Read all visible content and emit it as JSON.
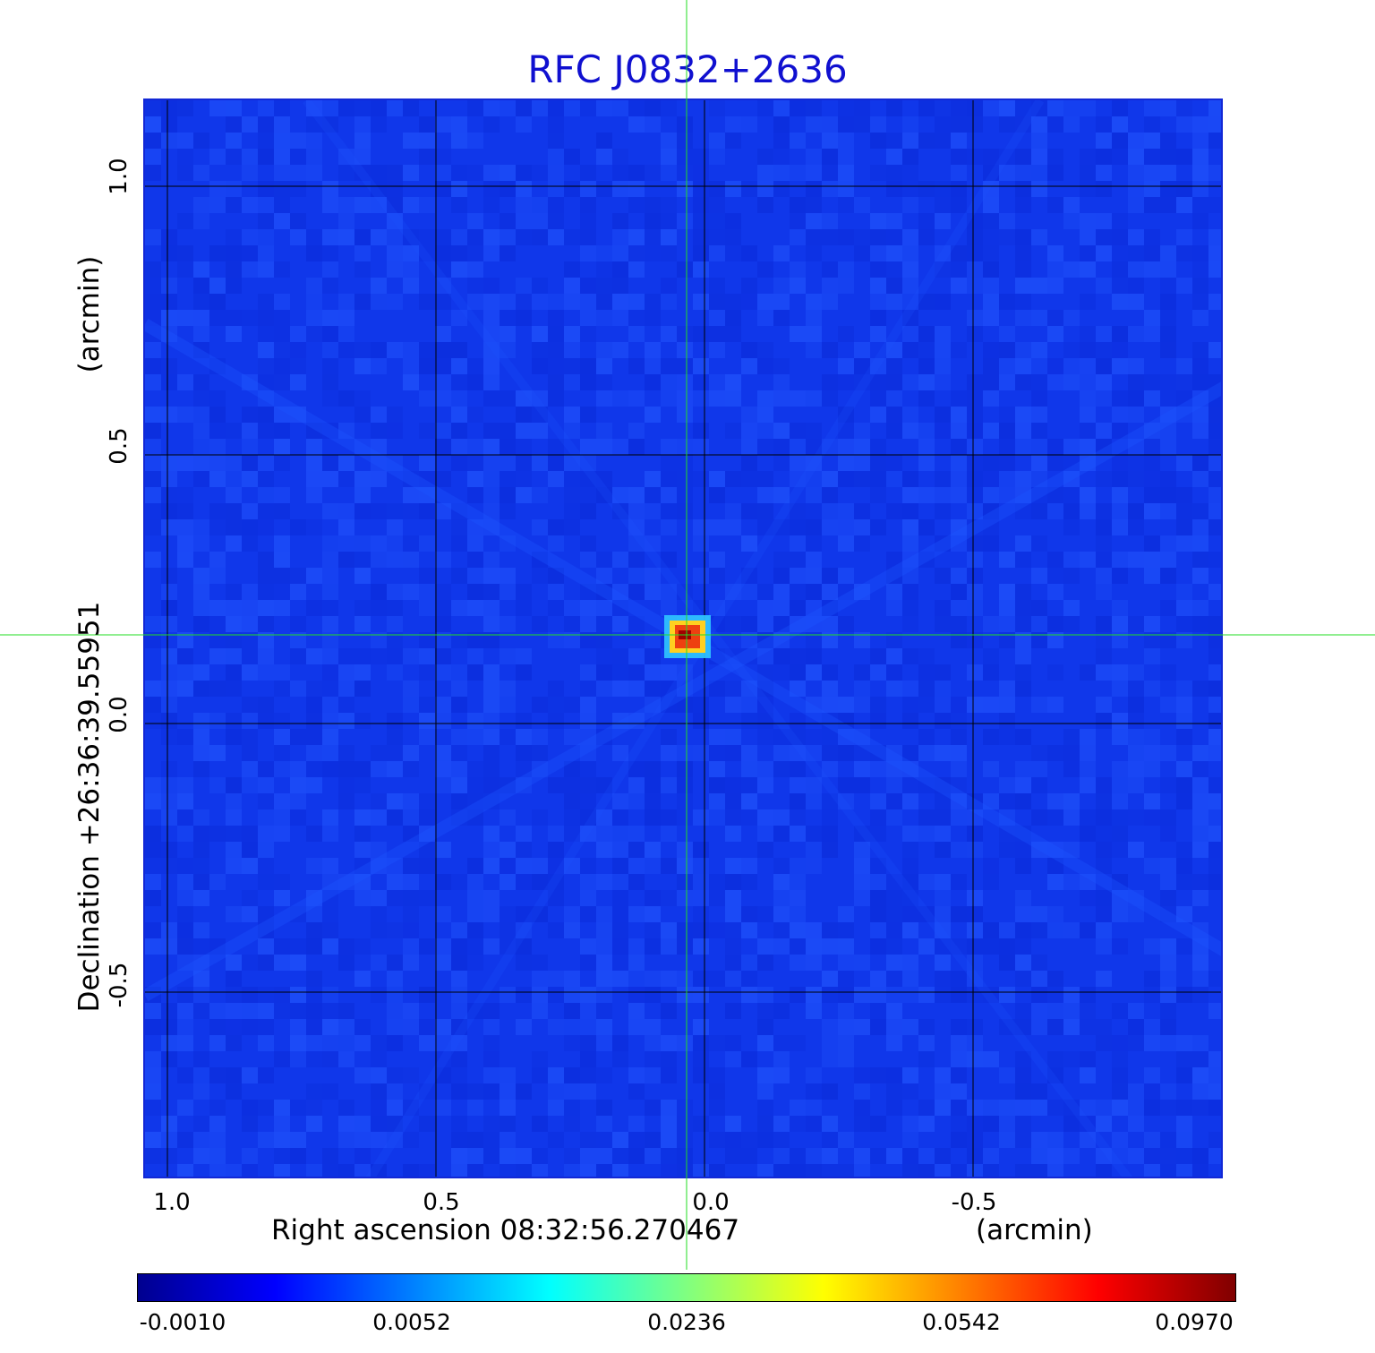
{
  "title": "RFC J0832+2636",
  "colors": {
    "title": "#1010d0",
    "background_map": "#1037ea",
    "grid": "#000000",
    "crosshair": "#22dd22"
  },
  "x_axis": {
    "label": "Right ascension  08:32:56.270467",
    "unit": "(arcmin)",
    "ticks": [
      "1.0",
      "0.5",
      "0.0",
      "-0.5"
    ]
  },
  "y_axis": {
    "label": "Declination  +26:36:39.55951",
    "unit": "(arcmin)",
    "ticks": [
      "1.0",
      "0.5",
      "0.0",
      "-0.5"
    ]
  },
  "source": {
    "description_visible": false,
    "peak_value": 0.097
  },
  "colorbar": {
    "ticks": [
      "-0.0010",
      "0.0052",
      "0.0236",
      "0.0542",
      "0.0970"
    ],
    "colormap": [
      "#00008f",
      "#0000ff",
      "#0080ff",
      "#00ffff",
      "#80ff80",
      "#ffff00",
      "#ff8000",
      "#ff0000",
      "#800000"
    ]
  }
}
